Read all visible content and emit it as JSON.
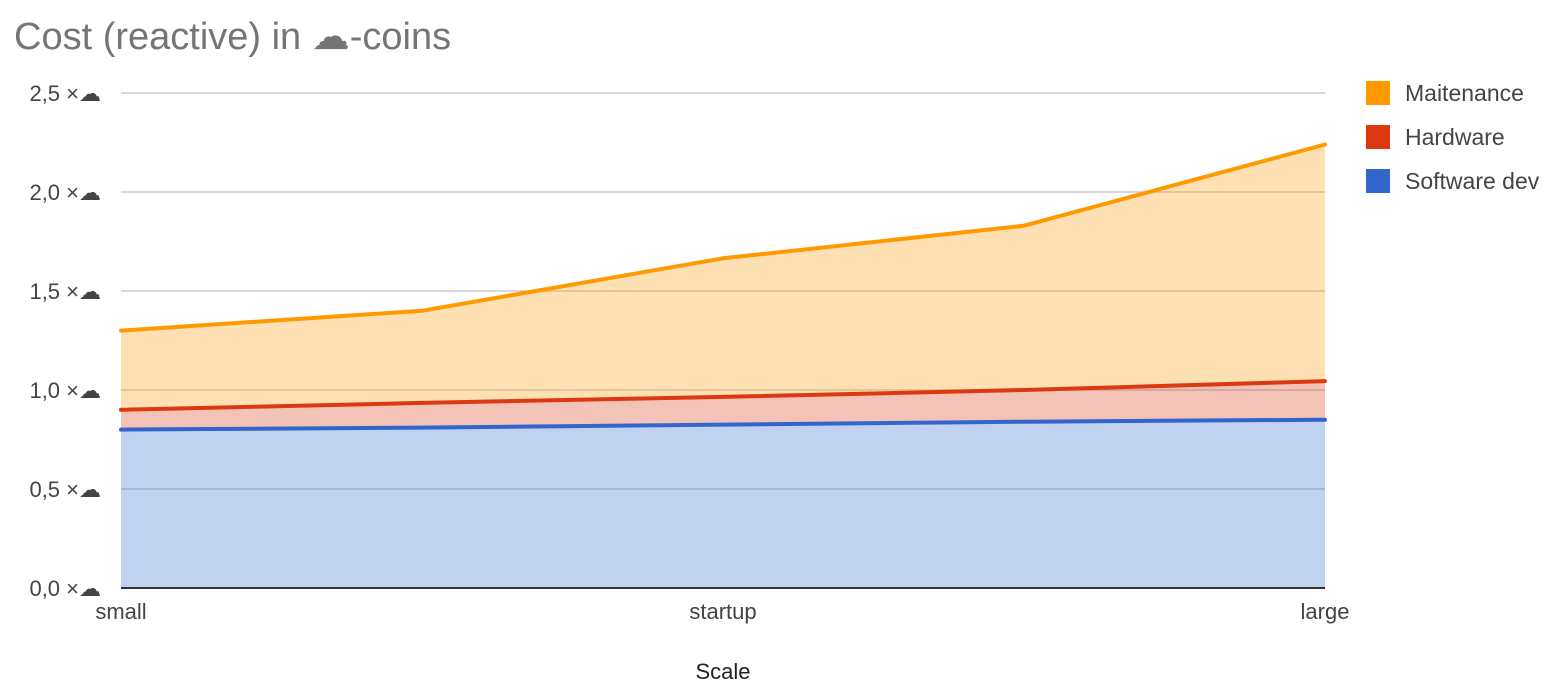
{
  "chart_data": {
    "type": "area",
    "stacked": true,
    "title": "Cost (reactive) in ☁-coins",
    "xlabel": "Scale",
    "ylabel": "",
    "x": [
      "small",
      "startup",
      "large"
    ],
    "x_ticks": [
      "small",
      "startup",
      "large"
    ],
    "ylim": [
      0,
      2.5
    ],
    "y_ticks": [
      "0,0 ×☁",
      "0,5 ×☁",
      "1,0 ×☁",
      "1,5 ×☁",
      "2,0 ×☁",
      "2,5 ×☁"
    ],
    "y_tick_values": [
      0,
      0.5,
      1.0,
      1.5,
      2.0,
      2.5
    ],
    "grid": true,
    "legend_position": "right",
    "series": [
      {
        "name": "Software dev",
        "color": "#3366cc",
        "x": [
          0,
          0.25,
          0.5,
          0.75,
          1.0
        ],
        "values": [
          0.8,
          0.81,
          0.825,
          0.84,
          0.85
        ]
      },
      {
        "name": "Hardware",
        "color": "#dc3912",
        "x": [
          0,
          0.25,
          0.5,
          0.75,
          1.0
        ],
        "values": [
          0.1,
          0.125,
          0.14,
          0.16,
          0.195
        ]
      },
      {
        "name": "Maitenance",
        "color": "#ff9900",
        "x": [
          0,
          0.25,
          0.5,
          0.75,
          1.0
        ],
        "values": [
          0.4,
          0.465,
          0.7,
          0.83,
          1.195
        ]
      }
    ],
    "legend_order": [
      "Maitenance",
      "Hardware",
      "Software dev"
    ]
  }
}
